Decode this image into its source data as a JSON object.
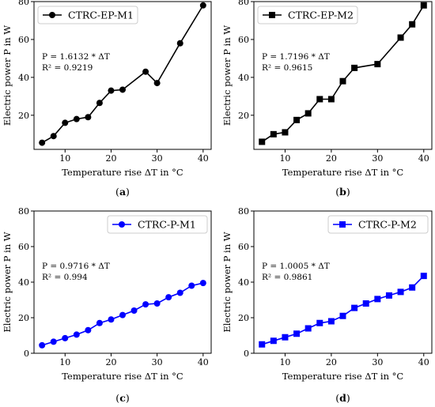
{
  "chart_data": [
    {
      "type": "line",
      "caption_letter": "a",
      "series": [
        {
          "name": "CTRC-EP-M1",
          "color": "#000000",
          "marker": "circle",
          "x": [
            5,
            7.5,
            10,
            12.5,
            15,
            17.5,
            20,
            22.5,
            27.5,
            30,
            35,
            40
          ],
          "y": [
            5.5,
            9,
            16,
            18,
            19,
            26.5,
            33,
            33.5,
            43,
            37,
            58,
            78
          ]
        }
      ],
      "annotation": [
        "P = 1.6132 * ΔT",
        "R² = 0.9219"
      ],
      "xlabel": "Temperature rise ΔT in °C",
      "ylabel": "Electric power P in W",
      "xlim": [
        3.25,
        41.75
      ],
      "ylim": [
        2,
        80
      ],
      "xticks": [
        10,
        20,
        30,
        40
      ],
      "yticks": [
        20,
        40,
        60,
        80
      ],
      "legend": "top-left",
      "grid": false
    },
    {
      "type": "line",
      "caption_letter": "b",
      "series": [
        {
          "name": "CTRC-EP-M2",
          "color": "#000000",
          "marker": "square",
          "x": [
            5,
            7.5,
            10,
            12.5,
            15,
            17.5,
            20,
            22.5,
            25,
            30,
            35,
            37.5,
            40
          ],
          "y": [
            6,
            10,
            11,
            17.5,
            21,
            28.5,
            28.5,
            38,
            45,
            47,
            61,
            68,
            78
          ]
        }
      ],
      "annotation": [
        "P = 1.7196 * ΔT",
        "R² = 0.9615"
      ],
      "xlabel": "Temperature rise ΔT in °C",
      "ylabel": "Electric power P in W",
      "xlim": [
        3.25,
        41.75
      ],
      "ylim": [
        2,
        80
      ],
      "xticks": [
        10,
        20,
        30,
        40
      ],
      "yticks": [
        20,
        40,
        60,
        80
      ],
      "legend": "top-left",
      "grid": false
    },
    {
      "type": "line",
      "caption_letter": "c",
      "series": [
        {
          "name": "CTRC-P-M1",
          "color": "#0000ff",
          "marker": "circle",
          "x": [
            5,
            7.5,
            10,
            12.5,
            15,
            17.5,
            20,
            22.5,
            25,
            27.5,
            30,
            32.5,
            35,
            37.5,
            40
          ],
          "y": [
            4.5,
            6.5,
            8.5,
            10.5,
            13,
            17,
            19,
            21.5,
            24,
            27.5,
            28,
            31.5,
            34,
            38,
            39.5
          ]
        }
      ],
      "annotation": [
        "P = 0.9716 * ΔT",
        "R² = 0.994"
      ],
      "xlabel": "Temperature rise ΔT in °C",
      "ylabel": "Electric power P in W",
      "xlim": [
        3.25,
        41.75
      ],
      "ylim": [
        0,
        80
      ],
      "xticks": [
        10,
        20,
        30,
        40
      ],
      "yticks": [
        0,
        20,
        40,
        60,
        80
      ],
      "legend": "top-right",
      "grid": false
    },
    {
      "type": "line",
      "caption_letter": "d",
      "series": [
        {
          "name": "CTRC-P-M2",
          "color": "#0000ff",
          "marker": "square",
          "x": [
            5,
            7.5,
            10,
            12.5,
            15,
            17.5,
            20,
            22.5,
            25,
            27.5,
            30,
            32.5,
            35,
            37.5,
            40
          ],
          "y": [
            5,
            7,
            9,
            11,
            14,
            17,
            18,
            21,
            25.5,
            28,
            30.5,
            32.5,
            34.5,
            37,
            43.5
          ]
        }
      ],
      "annotation": [
        "P = 1.0005 * ΔT",
        "R² = 0.9861"
      ],
      "xlabel": "Temperature rise ΔT in °C",
      "ylabel": "Electric power P in W",
      "xlim": [
        3.25,
        41.75
      ],
      "ylim": [
        0,
        80
      ],
      "xticks": [
        10,
        20,
        30,
        40
      ],
      "yticks": [
        0,
        20,
        40,
        60,
        80
      ],
      "legend": "top-right",
      "grid": false
    }
  ]
}
